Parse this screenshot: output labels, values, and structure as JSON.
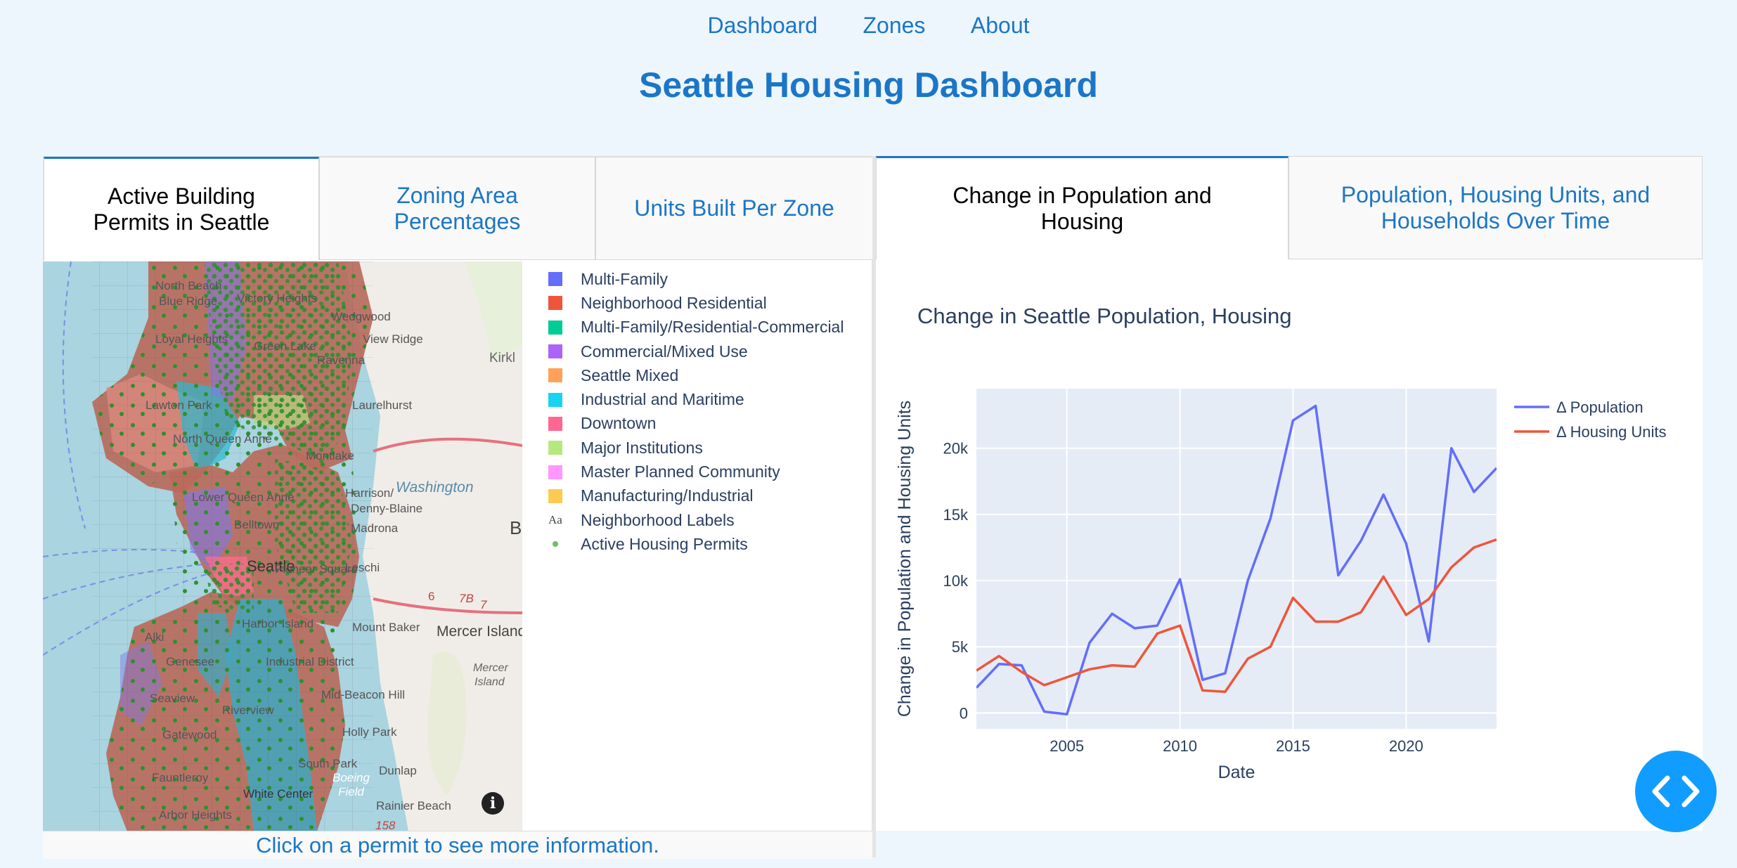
{
  "nav": {
    "dashboard": "Dashboard",
    "zones": "Zones",
    "about": "About"
  },
  "title": "Seattle Housing Dashboard",
  "left_tabs": [
    {
      "label_1": "Active Building",
      "label_2": "Permits in Seattle"
    },
    {
      "label_1": "Zoning Area",
      "label_2": "Percentages"
    },
    {
      "label_1": "Units Built Per Zone",
      "label_2": ""
    }
  ],
  "right_tabs": [
    {
      "label_1": "Change in Population and",
      "label_2": "Housing"
    },
    {
      "label_1": "Population, Housing Units, and",
      "label_2": "Households Over Time"
    }
  ],
  "legend": [
    {
      "label": "Multi-Family",
      "color": "#636efa"
    },
    {
      "label": "Neighborhood Residential",
      "color": "#ef553b"
    },
    {
      "label": "Multi-Family/Residential-Commercial",
      "color": "#00cc96"
    },
    {
      "label": "Commercial/Mixed Use",
      "color": "#ab63fa"
    },
    {
      "label": "Seattle Mixed",
      "color": "#ffa15a"
    },
    {
      "label": "Industrial and Maritime",
      "color": "#19d3f3"
    },
    {
      "label": "Downtown",
      "color": "#ff6692"
    },
    {
      "label": "Major Institutions",
      "color": "#b6e880"
    },
    {
      "label": "Master Planned Community",
      "color": "#ff97ff"
    },
    {
      "label": "Manufacturing/Industrial",
      "color": "#fecb52"
    },
    {
      "label": "Neighborhood Labels",
      "icon": "text-icon"
    },
    {
      "label": "Active Housing Permits",
      "icon": "dot-icon"
    }
  ],
  "map_labels": {
    "kirkland": "Kirkl",
    "washington": "Washington",
    "mercer_island": "Mercer Island",
    "mercer_island_2": "Mercer",
    "mercer_island_3": "Island",
    "b": "B",
    "north_beach": "North Beach",
    "blue_ridge": "Blue Ridge",
    "victory_heights": "Victory Heights",
    "wedgwood": "Wedgwood",
    "loyal_heights": "Loyal Heights",
    "green_lake": "Green Lake",
    "view_ridge": "View Ridge",
    "ravenna": "Ravenna",
    "lawton_park": "Lawton Park",
    "laurelhurst": "Laurelhurst",
    "north_queen_anne": "North Queen Anne",
    "montlake": "Montlake",
    "lower_queen_anne": "Lower Queen Anne",
    "belltown": "Belltown",
    "harrison": "Harrison/",
    "denny_blaine": "Denny-Blaine",
    "madrona": "Madrona",
    "pioneer_square": "Pioneer Square",
    "leschi": "Leschi",
    "seattle": "Seattle",
    "harbor_island": "Harbor Island",
    "mount_baker": "Mount Baker",
    "alki": "Alki",
    "genesee": "Genesee",
    "industrial_district": "Industrial District",
    "seaview": "Seaview",
    "mid_beacon_hill": "Mid-Beacon Hill",
    "riverview": "Riverview",
    "gatewood": "Gatewood",
    "holly_park": "Holly Park",
    "south_park": "South Park",
    "dunlap": "Dunlap",
    "fauntleroy": "Fauntleroy",
    "white_center": "White Center",
    "boeing_field": "Boeing",
    "boeing_field_2": "Field",
    "rainier_beach": "Rainier Beach",
    "arbor_heights": "Arbor Heights",
    "hwy_6": "6",
    "hwy_7b": "7B",
    "hwy_7": "7",
    "hwy_158": "158"
  },
  "hint": "Click on a permit to see more information.",
  "chart_data": {
    "type": "line",
    "title": "Change in Seattle Population, Housing",
    "xlabel": "Date",
    "ylabel": "Change in Population and Housing Units",
    "x": [
      2001,
      2002,
      2003,
      2004,
      2005,
      2006,
      2007,
      2008,
      2009,
      2010,
      2011,
      2012,
      2013,
      2014,
      2015,
      2016,
      2017,
      2018,
      2019,
      2020,
      2021,
      2022,
      2023,
      2024
    ],
    "xlim": [
      2001,
      2024
    ],
    "ylim": [
      -1200,
      24500
    ],
    "xticks": [
      2005,
      2010,
      2015,
      2020
    ],
    "yticks": [
      0,
      5000,
      10000,
      15000,
      20000
    ],
    "ytick_labels": [
      "0",
      "5k",
      "10k",
      "15k",
      "20k"
    ],
    "legend_position": "top-right",
    "grid": true,
    "series": [
      {
        "name": "Δ Population",
        "color": "#636efa",
        "values": [
          1900,
          3700,
          3600,
          100,
          -100,
          5300,
          7500,
          6400,
          6600,
          10100,
          2500,
          3000,
          10000,
          14700,
          22100,
          23200,
          10400,
          13000,
          16500,
          12800,
          5400,
          20000,
          16700,
          18500
        ]
      },
      {
        "name": "Δ Housing Units",
        "color": "#ef553b",
        "values": [
          3200,
          4300,
          3100,
          2100,
          2700,
          3300,
          3600,
          3500,
          6000,
          6600,
          1700,
          1600,
          4100,
          5000,
          8700,
          6900,
          6900,
          7600,
          10300,
          7400,
          8600,
          11000,
          12500,
          13100
        ]
      }
    ]
  }
}
